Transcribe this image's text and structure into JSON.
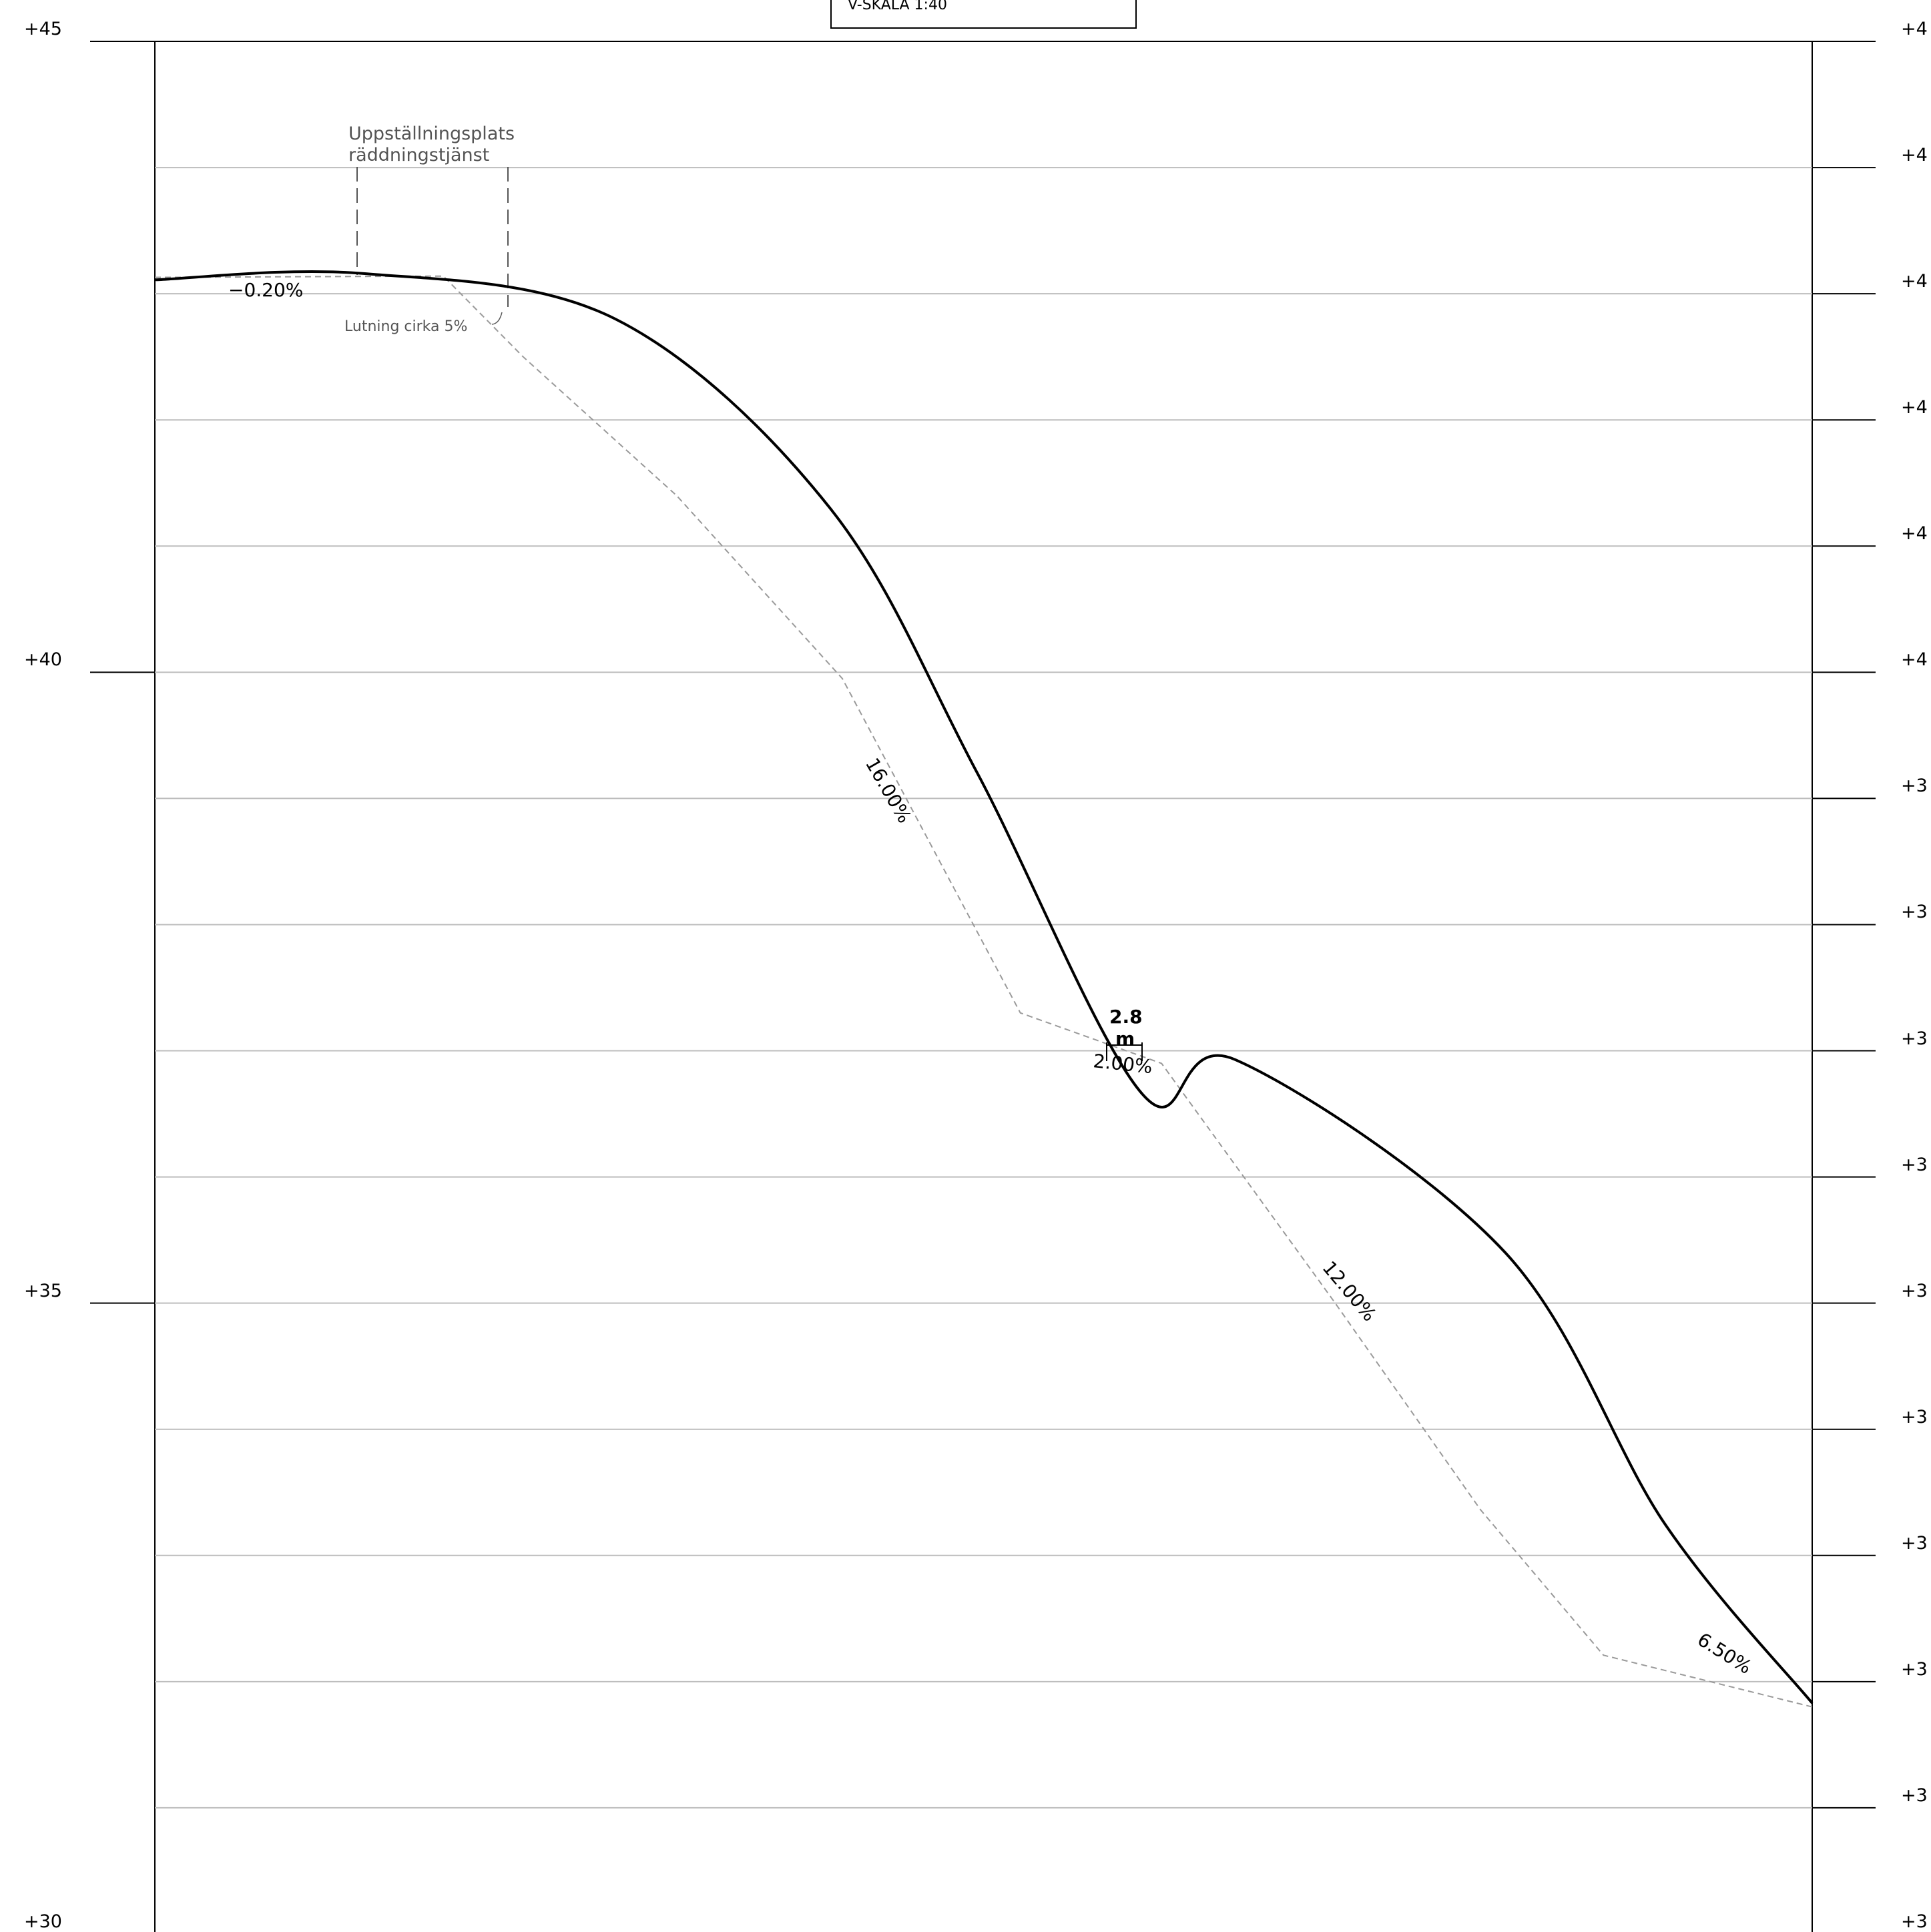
{
  "title_block": {
    "scale_text": "V-SKALA 1:40"
  },
  "axis": {
    "left_labels": [
      "+45",
      "+40",
      "+35",
      "+30"
    ],
    "right_labels": [
      "+4",
      "+4",
      "+4",
      "+4",
      "+4",
      "+4",
      "+3",
      "+3",
      "+3",
      "+3",
      "+3",
      "+3",
      "+3",
      "+3",
      "+3",
      "+3"
    ]
  },
  "annotations": {
    "area_line1": "Uppställningsplats",
    "area_line2": "räddningstjänst",
    "slope_note": "Lutning cirka 5%",
    "width_value": "2.8",
    "width_unit": "m"
  },
  "slope_labels": [
    "−0.20%",
    "16.00%",
    "2.00%",
    "12.00%",
    "6.50%"
  ],
  "chart_data": {
    "type": "line",
    "title": "",
    "xlabel": "",
    "ylabel": "",
    "ylim": [
      30,
      45
    ],
    "yticks": [
      45,
      44,
      43,
      42,
      41,
      40,
      39,
      38,
      37,
      36,
      35,
      34,
      33,
      32,
      31,
      30
    ],
    "grid": true,
    "series": [
      {
        "style": "solid-black",
        "points": [
          [
            0,
            43.11
          ],
          [
            3.4,
            43.16
          ],
          [
            7.5,
            42.8
          ],
          [
            11,
            41.3
          ],
          [
            13.4,
            39.2
          ],
          [
            16.1,
            36.65
          ],
          [
            17.6,
            36.93
          ],
          [
            22,
            35.4
          ],
          [
            24.6,
            33.25
          ],
          [
            27,
            31.83
          ]
        ]
      },
      {
        "style": "dashed-gray",
        "points": [
          [
            0,
            43.13
          ],
          [
            4.7,
            43.14
          ],
          [
            6,
            42.5
          ],
          [
            8.5,
            41.4
          ],
          [
            11.2,
            39.95
          ],
          [
            14.1,
            37.3
          ],
          [
            16.4,
            36.9
          ],
          [
            19.2,
            35.02
          ],
          [
            21.6,
            33.36
          ],
          [
            23.6,
            32.21
          ],
          [
            27,
            31.8
          ]
        ]
      }
    ]
  }
}
